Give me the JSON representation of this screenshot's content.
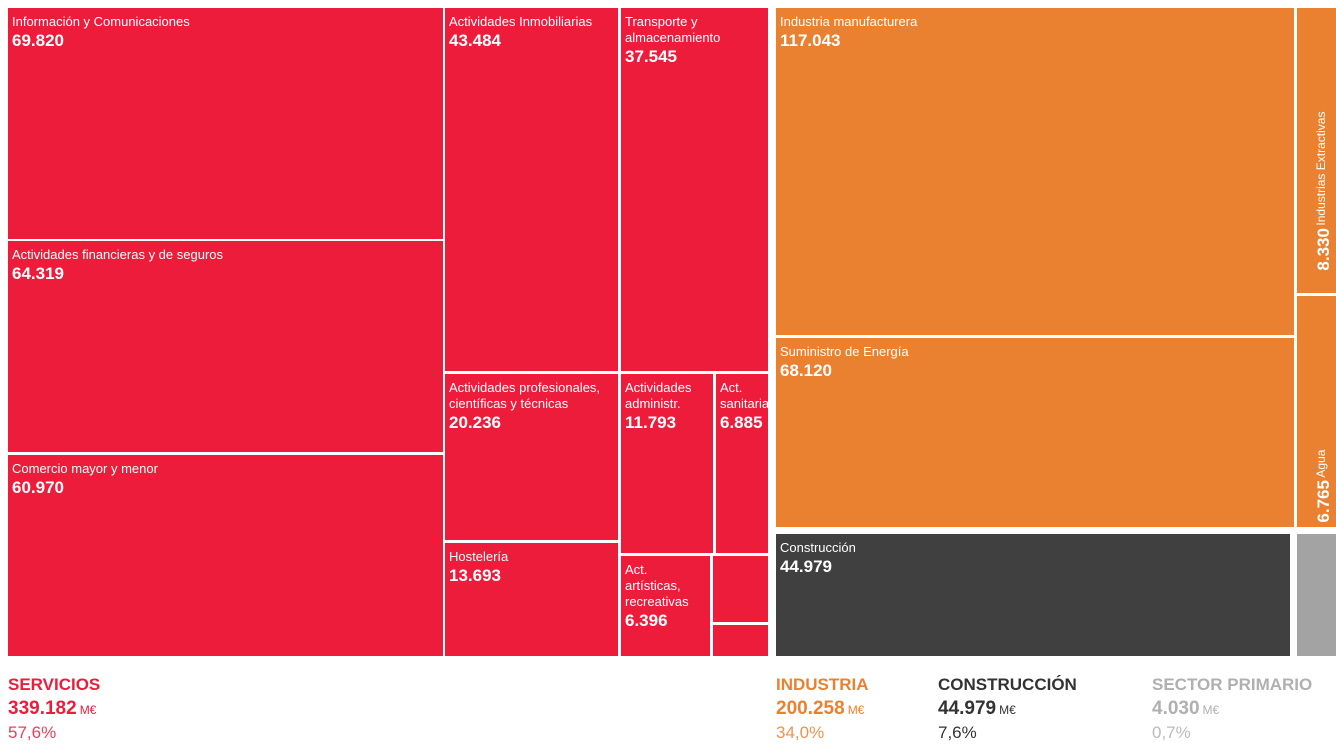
{
  "chart_data": {
    "type": "treemap",
    "unit": "M€",
    "groups": [
      {
        "name": "SERVICIOS",
        "color": "#ee1c3b",
        "total": 339182,
        "total_label": "339.182",
        "share": 57.6,
        "share_label": "57,6%",
        "categories": [
          "Información y Comunicaciones",
          "Actividades financieras y de seguros",
          "Comercio mayor y menor",
          "Actividades Inmobiliarias",
          "Transporte y almacenamiento",
          "Actividades profesionales, científicas y técnicas",
          "Hostelería",
          "Actividades administr.",
          "Act. sanitarias",
          "Act. artísticas, recreativas",
          null,
          null
        ],
        "values": [
          69820,
          64319,
          60970,
          43484,
          37545,
          20236,
          13693,
          11793,
          6885,
          6396,
          2740,
          1301
        ],
        "value_labels": [
          "69.820",
          "64.319",
          "60.970",
          "43.484",
          "37.545",
          "20.236",
          "13.693",
          "11.793",
          "6.885",
          "6.396",
          null,
          null
        ]
      },
      {
        "name": "INDUSTRIA",
        "color": "#ea8131",
        "total": 200258,
        "total_label": "200.258",
        "share": 34.0,
        "share_label": "34,0%",
        "categories": [
          "Industria manufacturera",
          "Suministro de Energía",
          "Industrias Extractivas",
          "Agua"
        ],
        "values": [
          117043,
          68120,
          8330,
          6765
        ],
        "value_labels": [
          "117.043",
          "68.120",
          "8.330",
          "6.765"
        ]
      },
      {
        "name": "CONSTRUCCIÓN",
        "color": "#404040",
        "total": 44979,
        "total_label": "44.979",
        "share": 7.6,
        "share_label": "7,6%",
        "categories": [
          "Construcción"
        ],
        "values": [
          44979
        ],
        "value_labels": [
          "44.979"
        ]
      },
      {
        "name": "SECTOR PRIMARIO",
        "color": "#a3a3a3",
        "total": 4030,
        "total_label": "4.030",
        "share": 0.7,
        "share_label": "0,7%",
        "categories": [
          null
        ],
        "values": [
          4030
        ],
        "value_labels": [
          null
        ]
      }
    ]
  }
}
